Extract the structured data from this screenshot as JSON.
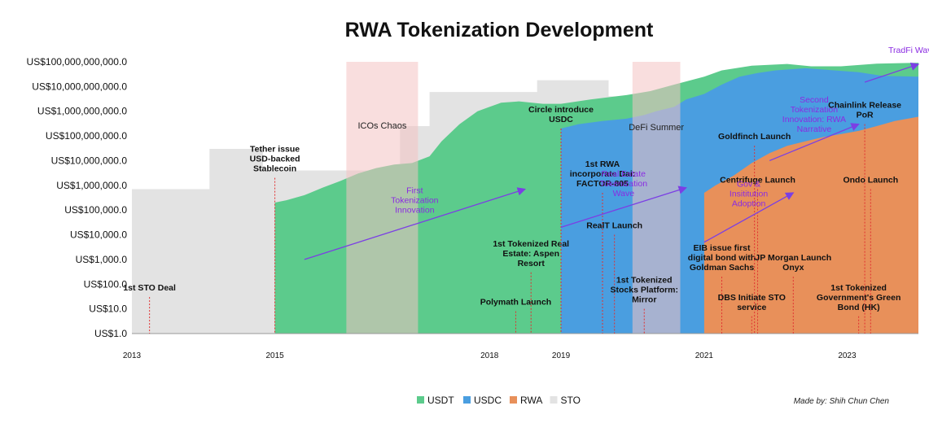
{
  "chart_data": {
    "type": "area",
    "title": "RWA Tokenization Development",
    "xlabel": "",
    "ylabel": "",
    "y_scale": "log",
    "ylim": [
      1,
      100000000000
    ],
    "xlim": [
      "2013-01-01",
      "2023-12-31"
    ],
    "y_ticks": [
      "US$1.0",
      "US$10.0",
      "US$100.0",
      "US$1,000.0",
      "US$10,000.0",
      "US$100,000.0",
      "US$1,000,000.0",
      "US$10,000,000.0",
      "US$100,000,000.0",
      "US$1,000,000,000.0",
      "US$10,000,000,000.0",
      "US$100,000,000,000.0"
    ],
    "x_ticks": [
      "2013",
      "2015",
      "2018",
      "2019",
      "2021",
      "2023"
    ],
    "x_tick_dates": [
      "2013-01-01",
      "2015-01-01",
      "2018-01-01",
      "2019-01-01",
      "2021-01-01",
      "2023-01-01"
    ],
    "legend": {
      "position": "bottom",
      "items": [
        {
          "name": "USDT",
          "color": "#5ccb8c"
        },
        {
          "name": "USDC",
          "color": "#4a9ee0"
        },
        {
          "name": "RWA",
          "color": "#e8905a"
        },
        {
          "name": "STO",
          "color": "#e3e3e3"
        }
      ]
    },
    "series": [
      {
        "name": "STO",
        "color": "#e3e3e3",
        "points": [
          [
            "2013-01-01",
            700000
          ],
          [
            "2014-02-01",
            700000
          ],
          [
            "2014-02-01",
            30000000
          ],
          [
            "2014-11-01",
            30000000
          ],
          [
            "2014-11-01",
            4000000
          ],
          [
            "2016-10-01",
            4000000
          ],
          [
            "2016-10-01",
            250000000
          ],
          [
            "2017-03-01",
            250000000
          ],
          [
            "2017-03-01",
            6000000000
          ],
          [
            "2018-09-01",
            6000000000
          ],
          [
            "2018-09-01",
            18000000000
          ],
          [
            "2019-09-01",
            18000000000
          ],
          [
            "2019-09-01",
            4000000000
          ],
          [
            "2020-09-01",
            4000000000
          ]
        ]
      },
      {
        "name": "USDT",
        "color": "#5ccb8c",
        "points": [
          [
            "2015-01-01",
            200000
          ],
          [
            "2015-03-01",
            250000
          ],
          [
            "2015-06-01",
            400000
          ],
          [
            "2015-09-01",
            800000
          ],
          [
            "2015-12-01",
            1500000
          ],
          [
            "2016-03-01",
            3000000
          ],
          [
            "2016-06-01",
            5000000
          ],
          [
            "2016-09-01",
            7000000
          ],
          [
            "2016-12-01",
            8000000
          ],
          [
            "2017-03-01",
            15000000
          ],
          [
            "2017-05-01",
            60000000
          ],
          [
            "2017-08-01",
            300000000
          ],
          [
            "2017-11-01",
            1000000000
          ],
          [
            "2018-01-01",
            1500000000
          ],
          [
            "2018-03-01",
            2200000000
          ],
          [
            "2018-06-01",
            2500000000
          ],
          [
            "2018-10-01",
            2000000000
          ],
          [
            "2019-01-01",
            2000000000
          ],
          [
            "2019-06-01",
            3000000000
          ],
          [
            "2019-12-01",
            4500000000
          ],
          [
            "2020-04-01",
            6500000000
          ],
          [
            "2020-08-01",
            12000000000
          ],
          [
            "2021-01-01",
            25000000000
          ],
          [
            "2021-04-01",
            45000000000
          ],
          [
            "2021-09-01",
            70000000000
          ],
          [
            "2022-03-01",
            82000000000
          ],
          [
            "2022-07-01",
            66000000000
          ],
          [
            "2022-12-01",
            66000000000
          ],
          [
            "2023-06-01",
            84000000000
          ],
          [
            "2023-12-31",
            92000000000
          ]
        ]
      },
      {
        "name": "USDC",
        "color": "#4a9ee0",
        "points": [
          [
            "2019-01-01",
            200000000
          ],
          [
            "2019-04-01",
            300000000
          ],
          [
            "2019-08-01",
            400000000
          ],
          [
            "2019-12-01",
            500000000
          ],
          [
            "2020-03-01",
            700000000
          ],
          [
            "2020-05-01",
            1000000000
          ],
          [
            "2020-08-01",
            1500000000
          ],
          [
            "2020-10-01",
            3000000000
          ],
          [
            "2021-01-01",
            5000000000
          ],
          [
            "2021-04-01",
            12000000000
          ],
          [
            "2021-07-01",
            25000000000
          ],
          [
            "2021-10-01",
            35000000000
          ],
          [
            "2022-01-01",
            45000000000
          ],
          [
            "2022-06-01",
            55000000000
          ],
          [
            "2022-12-01",
            43000000000
          ],
          [
            "2023-03-01",
            38000000000
          ],
          [
            "2023-07-01",
            27000000000
          ],
          [
            "2023-12-31",
            25000000000
          ]
        ]
      },
      {
        "name": "RWA",
        "color": "#e8905a",
        "points": [
          [
            "2021-01-01",
            500000
          ],
          [
            "2021-03-01",
            1000000
          ],
          [
            "2021-06-01",
            2500000
          ],
          [
            "2021-09-01",
            8000000
          ],
          [
            "2021-12-01",
            20000000
          ],
          [
            "2022-03-01",
            40000000
          ],
          [
            "2022-06-01",
            60000000
          ],
          [
            "2022-09-01",
            90000000
          ],
          [
            "2022-12-01",
            120000000
          ],
          [
            "2023-03-01",
            160000000
          ],
          [
            "2023-06-01",
            250000000
          ],
          [
            "2023-09-01",
            400000000
          ],
          [
            "2023-12-31",
            600000000
          ]
        ]
      }
    ],
    "shaded_periods": [
      {
        "label": "ICOs Chaos",
        "from": "2016-01-01",
        "to": "2017-01-01",
        "color": "#f4c2c2"
      },
      {
        "label": "DeFi Summer",
        "from": "2020-01-01",
        "to": "2020-09-01",
        "color": "#f4c2c2"
      }
    ],
    "events": [
      {
        "label": "1st STO Deal",
        "date": "2013-04-01",
        "value": 30
      },
      {
        "label": "Tether issue USD-backed Stablecoin",
        "date": "2015-01-01",
        "value": 2000000
      },
      {
        "label": "1st Tokenized Real Estate: Aspen Resort",
        "date": "2018-08-01",
        "value": 300
      },
      {
        "label": "Polymath Launch",
        "date": "2018-05-15",
        "value": 8
      },
      {
        "label": "Circle introduce USDC",
        "date": "2019-01-01",
        "value": 200000000
      },
      {
        "label": "1st RWA incorporate Dai: FACTOR-805",
        "date": "2019-08-01",
        "value": 500000
      },
      {
        "label": "RealT Launch",
        "date": "2019-10-01",
        "value": 10000
      },
      {
        "label": "1st Tokenized Stocks Platform: Mirror",
        "date": "2020-03-01",
        "value": 10
      },
      {
        "label": "EIB issue first digital bond with Goldman Sachs",
        "date": "2021-04-01",
        "value": 200
      },
      {
        "label": "Goldfinch Launch",
        "date": "2021-09-15",
        "value": 40000000
      },
      {
        "label": "Centrifuge Launch",
        "date": "2021-10-01",
        "value": 700000
      },
      {
        "label": "DBS Initiate STO service",
        "date": "2021-09-01",
        "value": 5
      },
      {
        "label": "JP Morgan Launch Onyx",
        "date": "2022-04-01",
        "value": 200
      },
      {
        "label": "Chainlink Release PoR",
        "date": "2023-04-01",
        "value": 300000000
      },
      {
        "label": "Ondo Launch",
        "date": "2023-05-01",
        "value": 700000
      },
      {
        "label": "1st Tokenized Government's Green Bond (HK)",
        "date": "2023-03-01",
        "value": 5
      }
    ],
    "waves": [
      {
        "label": "First Tokenization Innovation",
        "from": [
          "2015-06-01",
          1000
        ],
        "to": [
          "2018-07-01",
          700000
        ]
      },
      {
        "label": "Real Estate Tokenization Wave",
        "from": [
          "2019-01-01",
          20000
        ],
        "to": [
          "2020-10-01",
          800000
        ]
      },
      {
        "label": "Gov & Insititution Adoption",
        "from": [
          "2021-01-01",
          5000
        ],
        "to": [
          "2022-04-01",
          500000
        ]
      },
      {
        "label": "Second Tokenization Innovation: RWA Narrative",
        "from": [
          "2021-12-01",
          10000000
        ],
        "to": [
          "2023-03-01",
          300000000
        ]
      },
      {
        "label": "TradFi Wave?!",
        "from": [
          "2023-04-01",
          15000000000
        ],
        "to": [
          "2023-12-31",
          80000000000
        ]
      }
    ]
  },
  "credit": "Made by: Shih Chun Chen"
}
